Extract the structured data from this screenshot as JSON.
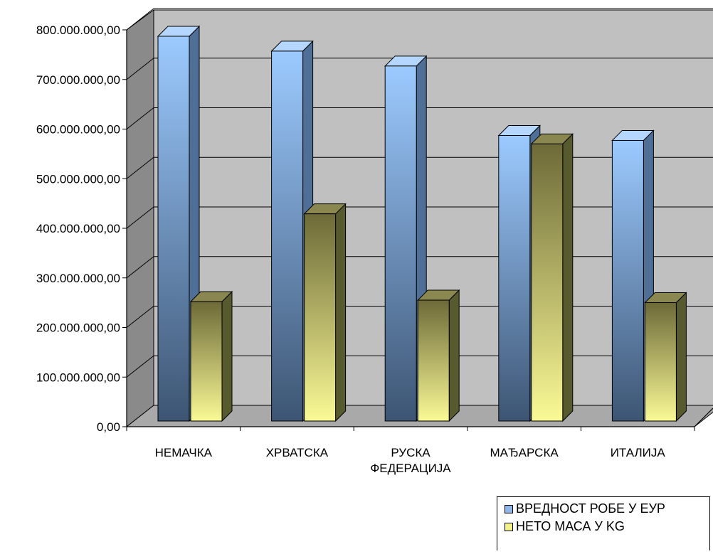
{
  "chart_data": {
    "type": "bar",
    "categories": [
      "НЕМАЧКА",
      "ХРВАТСКА",
      "РУСКА ФЕДЕРАЦИЈА",
      "МАЂАРСКА",
      "ИТАЛИЈА"
    ],
    "category_lines": [
      [
        "НЕМАЧКА"
      ],
      [
        "ХРВАТСКА"
      ],
      [
        "РУСКА",
        "ФЕДЕРАЦИЈА"
      ],
      [
        "МАЂАРСКА"
      ],
      [
        "ИТАЛИЈА"
      ]
    ],
    "series": [
      {
        "name": "ВРЕДНОСТ РОБЕ У ЕУР",
        "values": [
          790000000,
          760000000,
          730000000,
          590000000,
          580000000
        ],
        "color": "#8fb8e8"
      },
      {
        "name": "НЕТО МАСА У KG",
        "values": [
          255000000,
          432000000,
          258000000,
          573000000,
          253000000
        ],
        "color": "#f2f28a"
      }
    ],
    "yticks": [
      "0,00",
      "100.000.000,00",
      "200.000.000,00",
      "300.000.000,00",
      "400.000.000,00",
      "500.000.000,00",
      "600.000.000,00",
      "700.000.000,00",
      "800.000.000,00"
    ],
    "ylim": [
      0,
      800000000
    ],
    "grid": true,
    "legend_position": "bottom-right"
  }
}
